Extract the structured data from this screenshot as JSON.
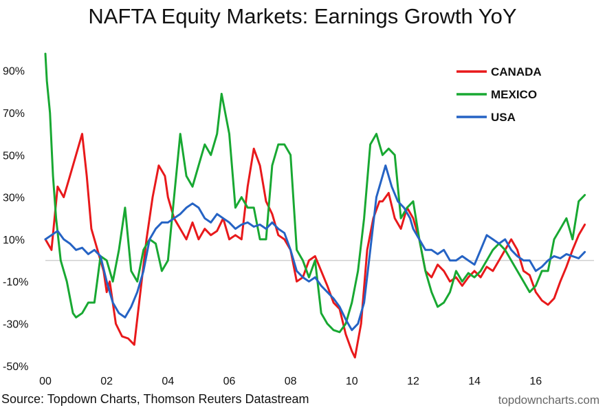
{
  "chart_data": {
    "type": "line",
    "title": "NAFTA Equity Markets: Earnings Growth YoY",
    "xlabel": "",
    "ylabel": "",
    "x_ticks": [
      "00",
      "02",
      "04",
      "06",
      "08",
      "10",
      "12",
      "14",
      "16"
    ],
    "x_tick_years": [
      2000,
      2002,
      2004,
      2006,
      2008,
      2010,
      2012,
      2014,
      2016
    ],
    "y_ticks": [
      "90%",
      "70%",
      "50%",
      "30%",
      "10%",
      "-10%",
      "-30%",
      "-50%"
    ],
    "y_tick_values": [
      90,
      70,
      50,
      30,
      10,
      -10,
      -30,
      -50
    ],
    "xlim": [
      2000,
      2017.9
    ],
    "ylim": [
      -52,
      100
    ],
    "legend_position": "top-right",
    "grid": false,
    "zero_line": true,
    "series": [
      {
        "name": "CANADA",
        "color": "#e8191b",
        "x": [
          2000.0,
          2000.2,
          2000.4,
          2000.6,
          2000.8,
          2001.0,
          2001.2,
          2001.35,
          2001.5,
          2001.7,
          2001.9,
          2002.0,
          2002.1,
          2002.3,
          2002.5,
          2002.7,
          2002.9,
          2003.1,
          2003.3,
          2003.5,
          2003.7,
          2003.9,
          2004.0,
          2004.2,
          2004.4,
          2004.6,
          2004.8,
          2005.0,
          2005.2,
          2005.4,
          2005.6,
          2005.8,
          2006.0,
          2006.2,
          2006.4,
          2006.6,
          2006.8,
          2007.0,
          2007.2,
          2007.4,
          2007.6,
          2007.8,
          2008.0,
          2008.2,
          2008.4,
          2008.6,
          2008.8,
          2009.0,
          2009.2,
          2009.4,
          2009.6,
          2009.8,
          2010.0,
          2010.1,
          2010.3,
          2010.5,
          2010.7,
          2010.9,
          2011.0,
          2011.2,
          2011.4,
          2011.6,
          2011.8,
          2012.0,
          2012.2,
          2012.4,
          2012.6,
          2012.8,
          2013.0,
          2013.2,
          2013.4,
          2013.6,
          2013.8,
          2014.0,
          2014.2,
          2014.4,
          2014.6,
          2014.8,
          2015.0,
          2015.2,
          2015.4,
          2015.6,
          2015.8,
          2016.0,
          2016.2,
          2016.4,
          2016.6,
          2016.8,
          2017.0,
          2017.2,
          2017.4,
          2017.6
        ],
        "y": [
          10,
          5,
          35,
          30,
          40,
          50,
          60,
          40,
          15,
          5,
          -5,
          -15,
          -10,
          -30,
          -36,
          -37,
          -40,
          -15,
          10,
          30,
          45,
          40,
          30,
          20,
          15,
          10,
          18,
          10,
          15,
          12,
          14,
          20,
          10,
          12,
          10,
          35,
          53,
          45,
          28,
          22,
          12,
          10,
          5,
          -10,
          -8,
          0,
          2,
          -5,
          -12,
          -20,
          -23,
          -35,
          -43,
          -46,
          -30,
          5,
          20,
          28,
          28,
          32,
          20,
          15,
          25,
          20,
          10,
          -5,
          -8,
          -2,
          -5,
          -10,
          -8,
          -12,
          -8,
          -5,
          -8,
          -3,
          -5,
          0,
          5,
          10,
          5,
          -5,
          -7,
          -15,
          -19,
          -21,
          -18,
          -10,
          -3,
          5,
          12,
          17
        ]
      },
      {
        "name": "MEXICO",
        "color": "#18a832",
        "x": [
          2000.0,
          2000.05,
          2000.15,
          2000.25,
          2000.35,
          2000.5,
          2000.7,
          2000.9,
          2001.0,
          2001.2,
          2001.4,
          2001.6,
          2001.8,
          2002.0,
          2002.2,
          2002.4,
          2002.6,
          2002.8,
          2003.0,
          2003.2,
          2003.4,
          2003.6,
          2003.8,
          2004.0,
          2004.2,
          2004.4,
          2004.6,
          2004.8,
          2005.0,
          2005.2,
          2005.4,
          2005.6,
          2005.75,
          2006.0,
          2006.2,
          2006.4,
          2006.6,
          2006.8,
          2007.0,
          2007.2,
          2007.4,
          2007.6,
          2007.8,
          2008.0,
          2008.2,
          2008.4,
          2008.6,
          2008.8,
          2009.0,
          2009.2,
          2009.4,
          2009.6,
          2009.8,
          2010.0,
          2010.2,
          2010.4,
          2010.6,
          2010.8,
          2011.0,
          2011.2,
          2011.4,
          2011.6,
          2011.8,
          2012.0,
          2012.2,
          2012.4,
          2012.6,
          2012.8,
          2013.0,
          2013.2,
          2013.4,
          2013.6,
          2013.8,
          2014.0,
          2014.2,
          2014.4,
          2014.6,
          2014.8,
          2015.0,
          2015.2,
          2015.4,
          2015.6,
          2015.8,
          2016.0,
          2016.2,
          2016.4,
          2016.6,
          2016.8,
          2017.0,
          2017.2,
          2017.4,
          2017.6
        ],
        "y": [
          98,
          85,
          70,
          40,
          20,
          0,
          -10,
          -25,
          -27,
          -25,
          -20,
          -20,
          2,
          0,
          -10,
          5,
          25,
          -5,
          -10,
          5,
          10,
          8,
          -5,
          0,
          30,
          60,
          40,
          35,
          45,
          55,
          50,
          60,
          79,
          60,
          25,
          30,
          25,
          25,
          10,
          10,
          45,
          55,
          55,
          50,
          5,
          0,
          -8,
          0,
          -25,
          -30,
          -33,
          -34,
          -30,
          -20,
          -5,
          20,
          55,
          60,
          50,
          53,
          50,
          20,
          25,
          28,
          10,
          -5,
          -15,
          -22,
          -20,
          -15,
          -5,
          -10,
          -6,
          -8,
          -5,
          0,
          5,
          8,
          5,
          0,
          -5,
          -10,
          -15,
          -12,
          -5,
          -5,
          10,
          15,
          20,
          10,
          28,
          31
        ]
      },
      {
        "name": "USA",
        "color": "#2563c4",
        "x": [
          2000.0,
          2000.2,
          2000.4,
          2000.6,
          2000.8,
          2001.0,
          2001.2,
          2001.4,
          2001.6,
          2001.8,
          2002.0,
          2002.2,
          2002.4,
          2002.6,
          2002.8,
          2003.0,
          2003.2,
          2003.4,
          2003.6,
          2003.8,
          2004.0,
          2004.2,
          2004.4,
          2004.6,
          2004.8,
          2005.0,
          2005.2,
          2005.4,
          2005.6,
          2005.8,
          2006.0,
          2006.2,
          2006.4,
          2006.6,
          2006.8,
          2007.0,
          2007.2,
          2007.4,
          2007.6,
          2007.8,
          2008.0,
          2008.2,
          2008.4,
          2008.6,
          2008.8,
          2009.0,
          2009.2,
          2009.4,
          2009.6,
          2009.8,
          2010.0,
          2010.2,
          2010.4,
          2010.6,
          2010.8,
          2011.0,
          2011.1,
          2011.3,
          2011.5,
          2011.7,
          2011.9,
          2012.0,
          2012.2,
          2012.4,
          2012.6,
          2012.8,
          2013.0,
          2013.2,
          2013.4,
          2013.6,
          2013.8,
          2014.0,
          2014.2,
          2014.4,
          2014.6,
          2014.8,
          2015.0,
          2015.2,
          2015.4,
          2015.6,
          2015.8,
          2016.0,
          2016.2,
          2016.4,
          2016.6,
          2016.8,
          2017.0,
          2017.2,
          2017.4,
          2017.6
        ],
        "y": [
          10,
          12,
          14,
          10,
          8,
          5,
          6,
          3,
          5,
          2,
          -10,
          -20,
          -25,
          -27,
          -22,
          -15,
          -5,
          10,
          15,
          18,
          18,
          20,
          22,
          25,
          27,
          25,
          20,
          18,
          22,
          20,
          18,
          15,
          17,
          18,
          16,
          17,
          15,
          18,
          15,
          13,
          5,
          -5,
          -8,
          -10,
          -8,
          -12,
          -15,
          -18,
          -22,
          -28,
          -33,
          -30,
          -20,
          5,
          30,
          40,
          45,
          35,
          28,
          25,
          20,
          15,
          10,
          5,
          5,
          3,
          5,
          0,
          0,
          2,
          0,
          -2,
          5,
          12,
          10,
          8,
          10,
          5,
          2,
          0,
          0,
          -5,
          -3,
          0,
          2,
          1,
          3,
          2,
          1,
          4
        ]
      }
    ]
  },
  "footer": {
    "source": "Source: Topdown Charts, Thomson Reuters Datastream",
    "watermark": "topdowncharts.com"
  }
}
